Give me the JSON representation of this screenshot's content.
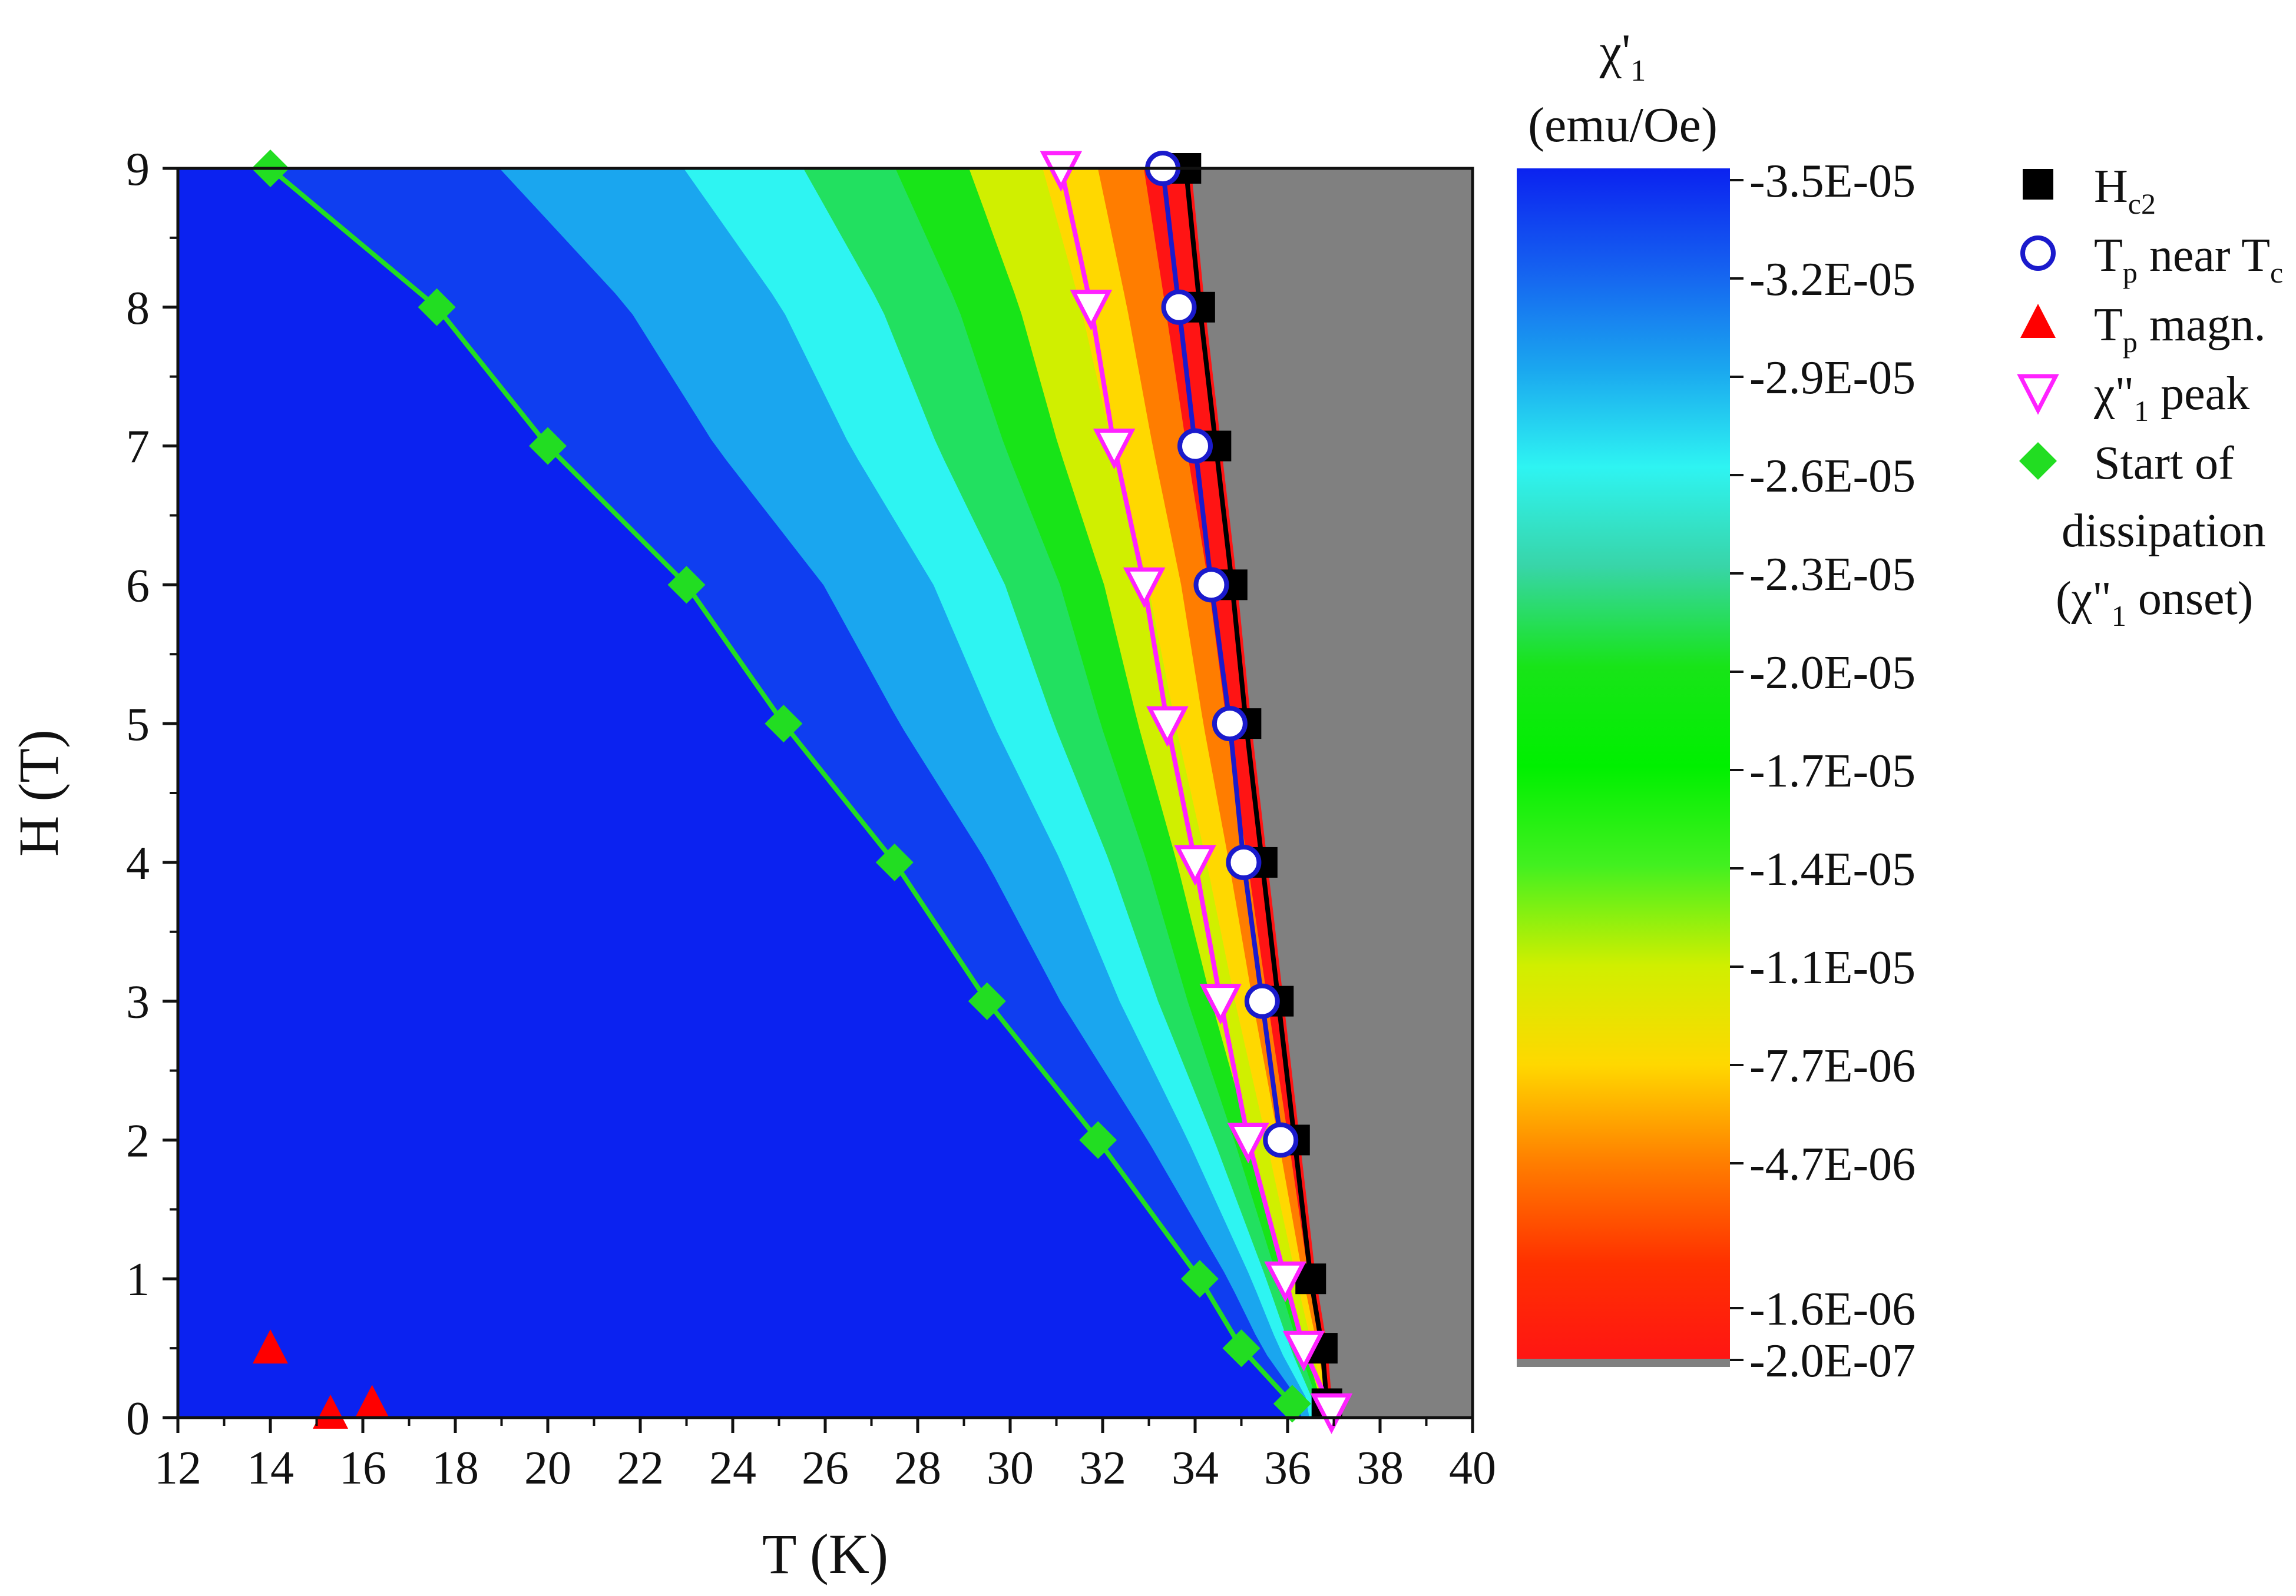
{
  "chart_data": {
    "type": "scatter",
    "xlabel": "T (K)",
    "ylabel": "H (T)",
    "xlim": [
      12,
      40
    ],
    "ylim": [
      0,
      9
    ],
    "xticks": [
      "12",
      "14",
      "16",
      "18",
      "20",
      "22",
      "24",
      "26",
      "28",
      "30",
      "32",
      "34",
      "36",
      "38",
      "40"
    ],
    "yticks": [
      "0",
      "1",
      "2",
      "3",
      "4",
      "5",
      "6",
      "7",
      "8",
      "9"
    ],
    "grid": false,
    "legend_position": "right",
    "colorbar": {
      "title": "χ'",
      "title_sub": "1",
      "unit": "(emu/Oe)",
      "ticks": [
        "-3.5E-05",
        "-3.2E-05",
        "-2.9E-05",
        "-2.6E-05",
        "-2.3E-05",
        "-2.0E-05",
        "-1.7E-05",
        "-1.4E-05",
        "-1.1E-05",
        "-7.7E-06",
        "-4.7E-06",
        "-1.6E-06",
        "-2.0E-07"
      ],
      "colors": [
        "#0b22f0",
        "#1560f0",
        "#1aa6ef",
        "#2ef4f2",
        "#38d5a8",
        "#18e418",
        "#00f000",
        "#42f020",
        "#d0ef00",
        "#ffd800",
        "#ff7d00",
        "#ff3000",
        "#ff1414"
      ],
      "background_color": "#808080"
    },
    "series": [
      {
        "name": "H",
        "name_sub": "c2",
        "label_after": "",
        "label_sub2": "",
        "label_tail": "",
        "marker": "square",
        "color": "#000000",
        "line": true,
        "x": [
          36.85,
          36.75,
          36.5,
          36.15,
          35.8,
          35.45,
          35.1,
          34.8,
          34.45,
          34.1,
          33.8
        ],
        "y": [
          0.1,
          0.5,
          1,
          2,
          3,
          4,
          5,
          6,
          7,
          8,
          9
        ]
      },
      {
        "name": "T",
        "name_sub": "p",
        "label_after": " near T",
        "label_sub2": "c",
        "label_tail": "",
        "marker": "circle",
        "color": "#1a1acc",
        "line": true,
        "x": [
          35.85,
          35.45,
          35.05,
          34.75,
          34.35,
          34.0,
          33.65,
          33.3
        ],
        "y": [
          2,
          3,
          4,
          5,
          6,
          7,
          8,
          9
        ]
      },
      {
        "name": "T",
        "name_sub": "p",
        "label_after": " magn.",
        "label_sub2": "",
        "label_tail": "",
        "marker": "triangle-up",
        "color": "#ff0000",
        "line": false,
        "x": [
          14.0,
          15.3,
          16.2
        ],
        "y": [
          0.5,
          0.03,
          0.1
        ]
      },
      {
        "name": "χ\"",
        "name_sub": "1",
        "label_after": " peak",
        "label_sub2": "",
        "label_tail": "",
        "marker": "triangle-down",
        "color": "#ff22ff",
        "line": true,
        "x": [
          36.95,
          36.35,
          35.95,
          35.15,
          34.55,
          34.0,
          33.4,
          32.9,
          32.25,
          31.75,
          31.1
        ],
        "y": [
          0.05,
          0.5,
          1,
          2,
          3,
          4,
          5,
          6,
          7,
          8,
          9
        ]
      },
      {
        "name": "Start of",
        "name_sub": "",
        "label_after": "",
        "label_sub2": "",
        "label_tail": "",
        "label_lines": [
          "dissipation",
          "(χ\"",
          "1",
          " onset)"
        ],
        "marker": "diamond",
        "color": "#22dd22",
        "line": true,
        "x": [
          36.1,
          35.0,
          34.1,
          31.9,
          29.5,
          27.5,
          25.1,
          23.0,
          20.0,
          17.6,
          14.0
        ],
        "y": [
          0.1,
          0.5,
          1,
          2,
          3,
          4,
          5,
          6,
          7,
          8,
          9
        ]
      }
    ]
  }
}
